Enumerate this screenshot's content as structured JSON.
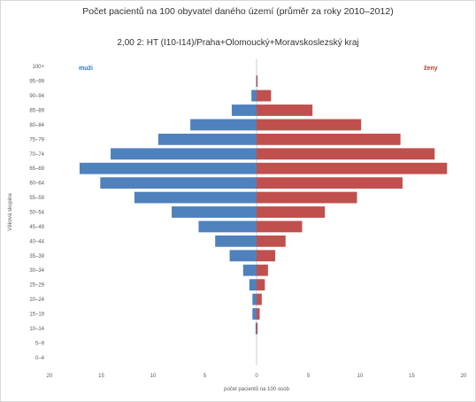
{
  "chart_data": {
    "type": "bar",
    "title": "Počet pacientů na 100 obyvatel daného území (průměr za roky 2010–2012)",
    "subtitle": "2,00 2: HT (I10-I14)/Praha+Olomoucký+Moravskoslezský kraj",
    "xlabel": "počet pacientů na 100 osob",
    "ylabel": "Věková skupina",
    "xlim": [
      -20,
      20
    ],
    "xticks": [
      "20",
      "15",
      "10",
      "5",
      "0",
      "5",
      "10",
      "15",
      "20"
    ],
    "categories": [
      "100+",
      "95–99",
      "90–94",
      "85–89",
      "80–84",
      "75–79",
      "70–74",
      "65–69",
      "60–64",
      "55–59",
      "50–54",
      "45–49",
      "40–44",
      "35–39",
      "30–34",
      "25–29",
      "20–24",
      "15–19",
      "10–14",
      "5–9",
      "0–4"
    ],
    "series": [
      {
        "name": "muži",
        "color": "#4f81bd",
        "values": [
          0,
          0.05,
          0.5,
          2.4,
          6.4,
          9.5,
          14.1,
          17.1,
          15.1,
          11.8,
          8.2,
          5.6,
          4.0,
          2.6,
          1.3,
          0.7,
          0.4,
          0.4,
          0.1,
          0,
          0
        ]
      },
      {
        "name": "ženy",
        "color": "#c0504d",
        "values": [
          0,
          0.1,
          1.4,
          5.4,
          10.1,
          13.9,
          17.2,
          18.4,
          14.1,
          9.7,
          6.6,
          4.4,
          2.8,
          1.8,
          1.1,
          0.8,
          0.5,
          0.3,
          0.1,
          0,
          0
        ]
      }
    ],
    "legend": [
      "muži",
      "ženy"
    ],
    "grid": false
  }
}
